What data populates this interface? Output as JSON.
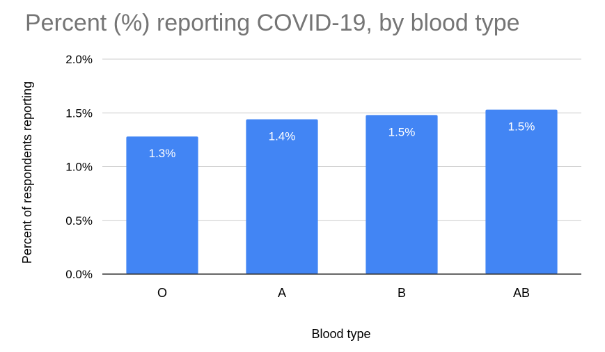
{
  "chart_data": {
    "type": "bar",
    "title": "Percent (%) reporting COVID-19, by blood type",
    "xlabel": "Blood type",
    "ylabel": "Percent of respondents reporting",
    "categories": [
      "O",
      "A",
      "B",
      "AB"
    ],
    "values": [
      1.28,
      1.44,
      1.48,
      1.53
    ],
    "data_labels": [
      "1.3%",
      "1.4%",
      "1.5%",
      "1.5%"
    ],
    "ylim": [
      0,
      2.0
    ],
    "yticks": [
      0.0,
      0.5,
      1.0,
      1.5,
      2.0
    ],
    "ytick_labels": [
      "0.0%",
      "0.5%",
      "1.0%",
      "1.5%",
      "2.0%"
    ],
    "grid": true,
    "legend": "none",
    "colors": {
      "bar": "#4285f4",
      "title": "#757575",
      "text": "#000000",
      "grid": "#cccccc",
      "axis": "#333333",
      "data_label": "#ffffff"
    }
  }
}
